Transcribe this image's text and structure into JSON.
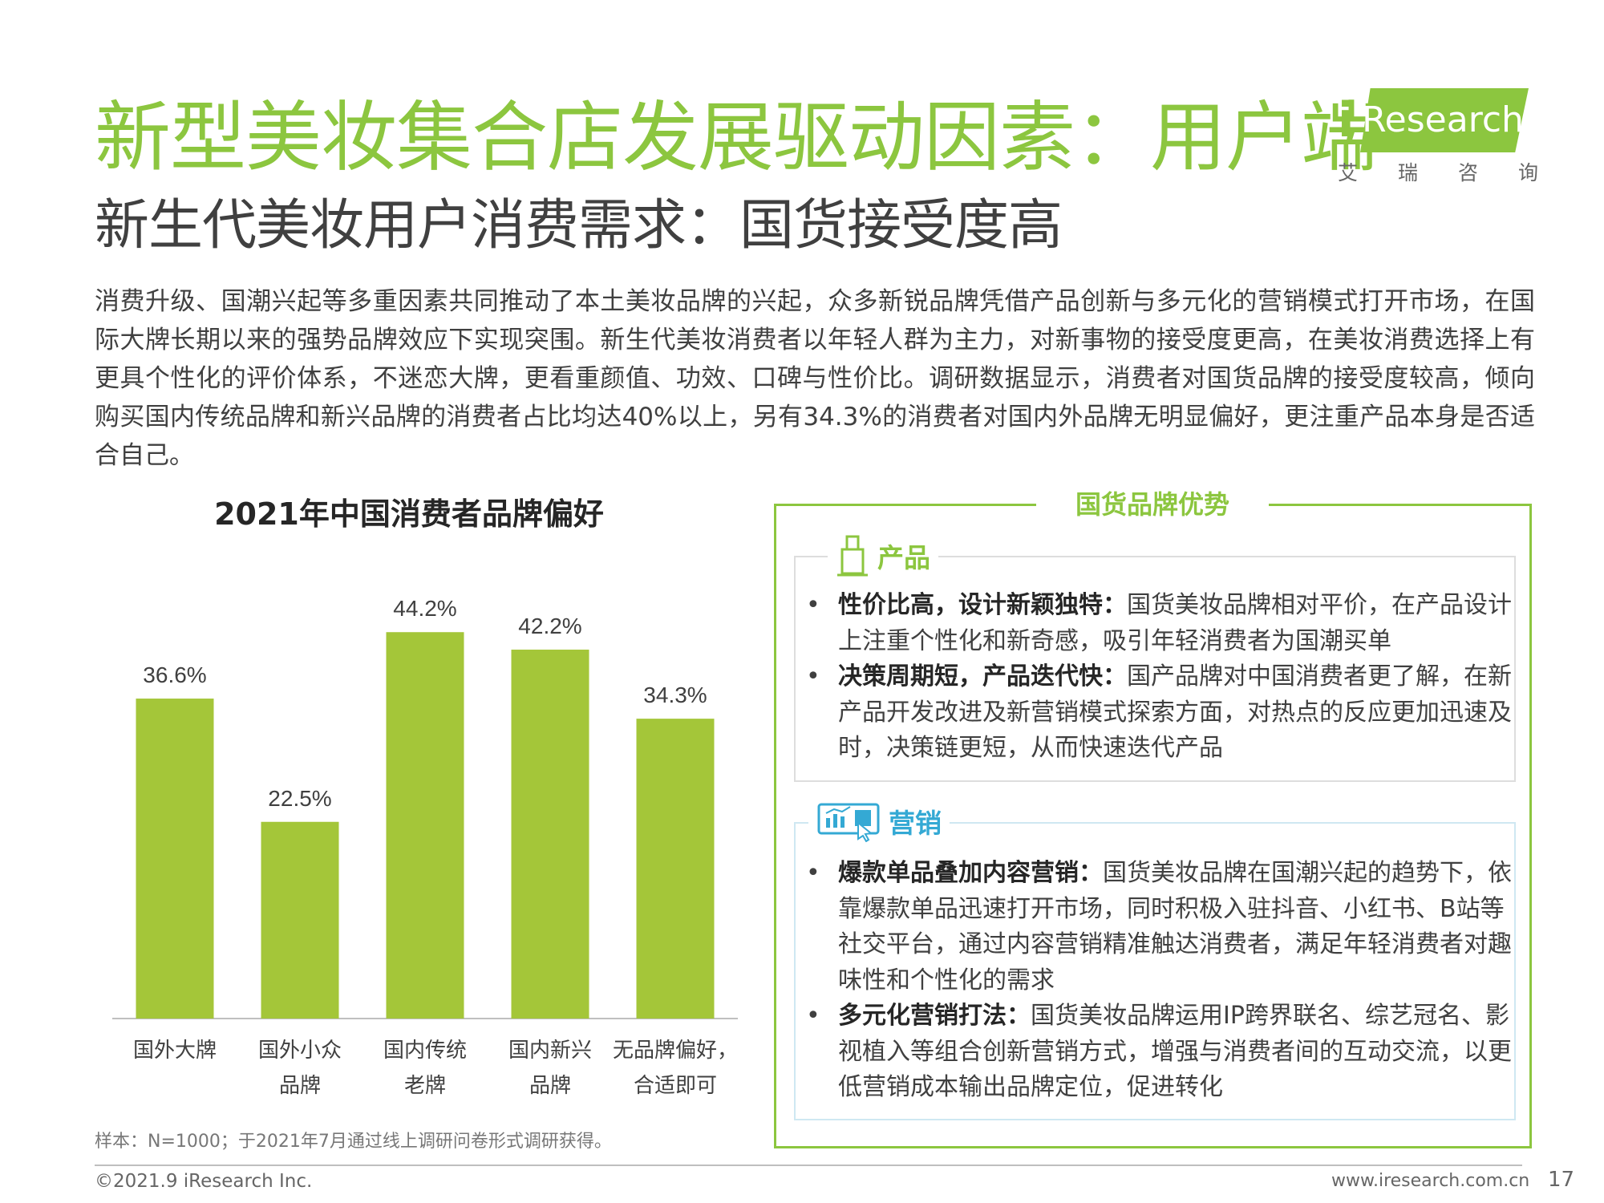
{
  "header": {
    "title": "新型美妆集合店发展驱动因素：用户端",
    "subtitle": "新生代美妆用户消费需求：国货接受度高"
  },
  "logo": {
    "text": "Research",
    "cn": [
      "艾",
      "瑞",
      "咨",
      "询"
    ]
  },
  "intro": "消费升级、国潮兴起等多重因素共同推动了本土美妆品牌的兴起，众多新锐品牌凭借产品创新与多元化的营销模式打开市场，在国际大牌长期以来的强势品牌效应下实现突围。新生代美妆消费者以年轻人群为主力，对新事物的接受度更高，在美妆消费选择上有更具个性化的评价体系，不迷恋大牌，更看重颜值、功效、口碑与性价比。调研数据显示，消费者对国货品牌的接受度较高，倾向购买国内传统品牌和新兴品牌的消费者占比均达40%以上，另有34.3%的消费者对国内外品牌无明显偏好，更注重产品本身是否适合自己。",
  "chart_data": {
    "type": "bar",
    "title": "2021年中国消费者品牌偏好",
    "categories": [
      [
        "国外大牌"
      ],
      [
        "国外小众",
        "品牌"
      ],
      [
        "国内传统",
        "老牌"
      ],
      [
        "国内新兴",
        "品牌"
      ],
      [
        "无品牌偏好，",
        "合适即可"
      ]
    ],
    "values": [
      36.6,
      22.5,
      44.2,
      42.2,
      34.3
    ],
    "data_labels": [
      "36.6%",
      "22.5%",
      "44.2%",
      "42.2%",
      "34.3%"
    ],
    "ylim": [
      0,
      50
    ],
    "grid": false,
    "bar_color": "#a4c639"
  },
  "note": "样本：N=1000；于2021年7月通过线上调研问卷形式调研获得。",
  "panel": {
    "title": "国货品牌优势",
    "product": {
      "label": "产品",
      "bullets": [
        {
          "bold": "性价比高，设计新颖独特：",
          "text": "国货美妆品牌相对平价，在产品设计上注重个性化和新奇感，吸引年轻消费者为国潮买单"
        },
        {
          "bold": "决策周期短，产品迭代快：",
          "text": "国产品牌对中国消费者更了解，在新产品开发改进及新营销模式探索方面，对热点的反应更加迅速及时，决策链更短，从而快速迭代产品"
        }
      ]
    },
    "marketing": {
      "label": "营销",
      "bullets": [
        {
          "bold": "爆款单品叠加内容营销：",
          "text": "国货美妆品牌在国潮兴起的趋势下，依靠爆款单品迅速打开市场，同时积极入驻抖音、小红书、B站等社交平台，通过内容营销精准触达消费者，满足年轻消费者对趣味性和个性化的需求"
        },
        {
          "bold": "多元化营销打法：",
          "text": "国货美妆品牌运用IP跨界联名、综艺冠名、影视植入等组合创新营销方式，增强与消费者间的互动交流，以更低营销成本输出品牌定位，促进转化"
        }
      ]
    },
    "bullet_symbol": "•"
  },
  "footer": {
    "copyright": "©2021.9 iResearch Inc.",
    "website": "www.iresearch.com.cn",
    "page": "17"
  },
  "colors": {
    "green": "#8cc63f",
    "blue": "#34a9d4",
    "text": "#404040"
  }
}
